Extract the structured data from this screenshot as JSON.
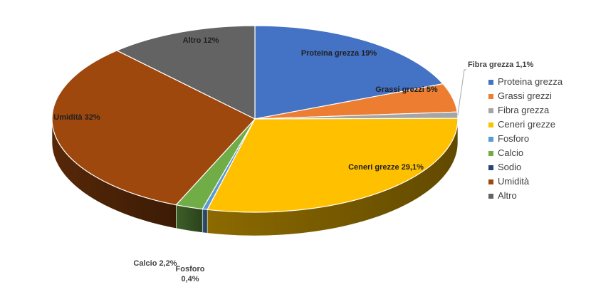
{
  "chart_data": {
    "type": "pie",
    "title": "",
    "series": [
      {
        "name": "Proteina grezza",
        "value": 19,
        "label": "Proteina grezza 19%",
        "color": "#4472C4"
      },
      {
        "name": "Grassi grezzi",
        "value": 5,
        "label": "Grassi grezzi 5%",
        "color": "#ED7D31"
      },
      {
        "name": "Fibra grezza",
        "value": 1.1,
        "label": "Fibra grezza 1,1%",
        "color": "#A5A5A5"
      },
      {
        "name": "Ceneri grezze",
        "value": 29.1,
        "label": "Ceneri grezze 29,1%",
        "color": "#FFC000"
      },
      {
        "name": "Fosforo",
        "value": 0.4,
        "label": "Fosforo\n0,4%",
        "color": "#5B9BD5"
      },
      {
        "name": "Calcio",
        "value": 2.2,
        "label": "Calcio 2,2%",
        "color": "#70AD47"
      },
      {
        "name": "Sodio",
        "value": 0,
        "label": "",
        "color": "#264478"
      },
      {
        "name": "Umidità",
        "value": 32,
        "label": "Umidità 32%",
        "color": "#9E480E"
      },
      {
        "name": "Altro",
        "value": 12,
        "label": "Altro 12%",
        "color": "#636363"
      }
    ],
    "legend_position": "right",
    "style": "3d-pie"
  }
}
